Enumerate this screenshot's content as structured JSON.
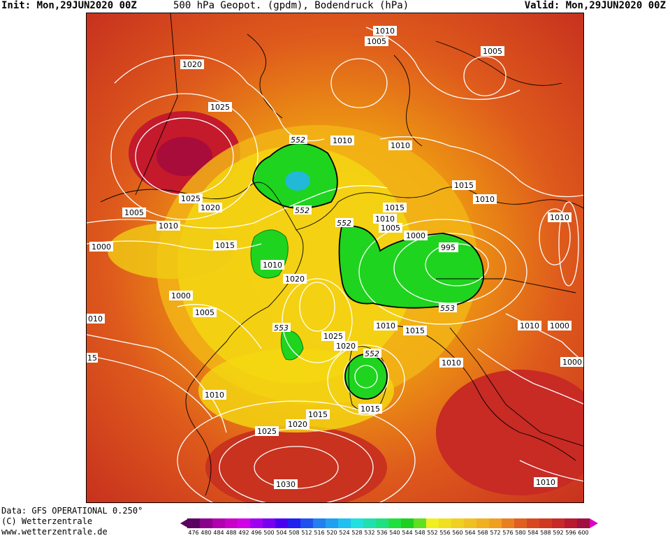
{
  "header": {
    "init": "Init: Mon,29JUN2020 00Z",
    "title": "500 hPa Geopot. (gpdm), Bodendruck (hPa)",
    "valid": "Valid: Mon,29JUN2020 00Z"
  },
  "footer": {
    "data": "Data: GFS OPERATIONAL 0.250°",
    "copyright": "(C) Wetterzentrale",
    "url": "www.wetterzentrale.de"
  },
  "map": {
    "isobar_labels": [
      "1020",
      "1025",
      "1025",
      "1020",
      "1005",
      "1010",
      "1000",
      "1015",
      "1000",
      "1005",
      "010",
      "15",
      "1010",
      "1025",
      "1020",
      "1030",
      "1015",
      "1020",
      "1025",
      "1010",
      "1010",
      "1005",
      "1015",
      "1010",
      "1005",
      "1000",
      "995",
      "1010",
      "1015",
      "1010",
      "1010",
      "1000",
      "1000",
      "1010",
      "1010",
      "1015",
      "1020",
      "1015",
      "1005",
      "1010",
      "1010",
      "1010"
    ],
    "geopotential_labels": [
      "552",
      "552",
      "552",
      "553",
      "552",
      "553"
    ],
    "colors": {
      "land_outline": "#000000",
      "isobar": "#ffffff",
      "green_low": "#18d418",
      "yellow": "#f4ee10",
      "orange": "#f0a010",
      "red": "#d8401c",
      "deep_red": "#c0142c"
    }
  },
  "scale": {
    "values": [
      "476",
      "480",
      "484",
      "488",
      "492",
      "496",
      "500",
      "504",
      "508",
      "512",
      "516",
      "520",
      "524",
      "528",
      "532",
      "536",
      "540",
      "544",
      "548",
      "552",
      "556",
      "560",
      "564",
      "568",
      "572",
      "576",
      "580",
      "584",
      "588",
      "592",
      "596",
      "600"
    ],
    "colors": [
      "#5a0060",
      "#8a008a",
      "#b000b0",
      "#c800c8",
      "#d200e6",
      "#a000f0",
      "#7800f0",
      "#4a00f0",
      "#2020f0",
      "#2050f0",
      "#2080f0",
      "#20a0f0",
      "#20c0f0",
      "#20e0e0",
      "#20e0b0",
      "#20e080",
      "#20e040",
      "#20d020",
      "#60e020",
      "#f0f020",
      "#f0e020",
      "#f0d020",
      "#f0c020",
      "#f0b020",
      "#f0a020",
      "#e88020",
      "#e06020",
      "#d84820",
      "#d03820",
      "#c82828",
      "#b81830",
      "#a01040"
    ]
  }
}
